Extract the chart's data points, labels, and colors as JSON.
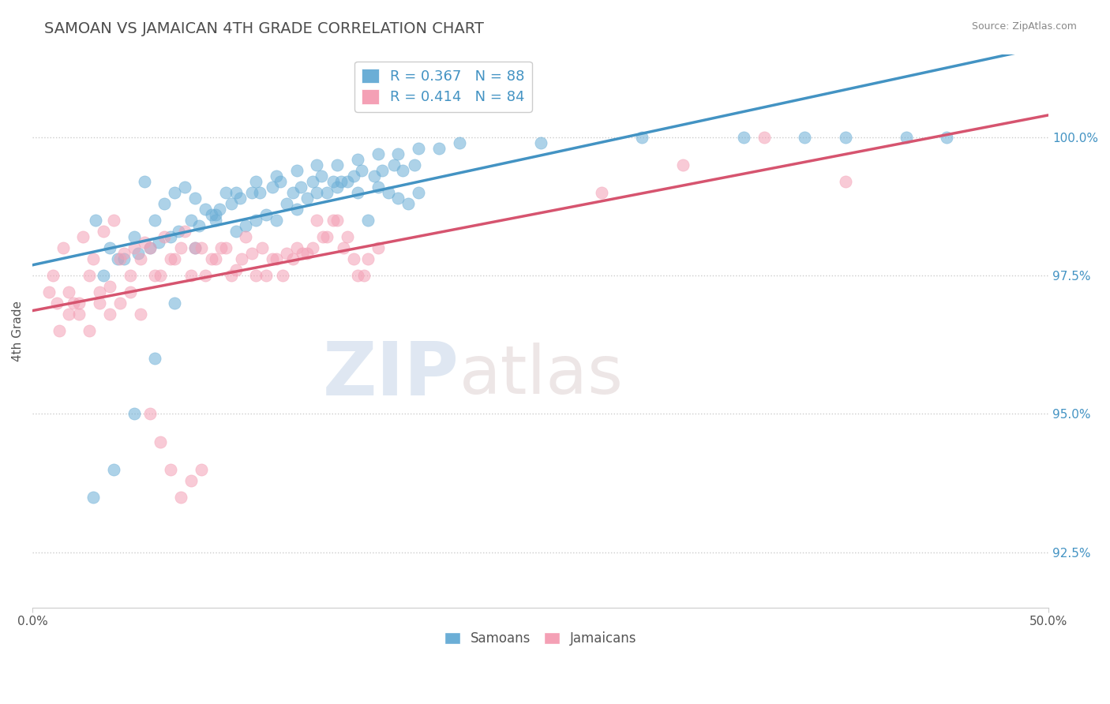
{
  "title": "SAMOAN VS JAMAICAN 4TH GRADE CORRELATION CHART",
  "source_text": "Source: ZipAtlas.com",
  "ylabel": "4th Grade",
  "xlim": [
    0.0,
    50.0
  ],
  "ylim": [
    91.5,
    101.5
  ],
  "ytick_labels": [
    "92.5%",
    "95.0%",
    "97.5%",
    "100.0%"
  ],
  "ytick_values": [
    92.5,
    95.0,
    97.5,
    100.0
  ],
  "legend_label_blue": "R = 0.367   N = 88",
  "legend_label_pink": "R = 0.414   N = 84",
  "watermark_zip": "ZIP",
  "watermark_atlas": "atlas",
  "blue_color": "#6baed6",
  "pink_color": "#f4a0b5",
  "blue_line_color": "#4393c3",
  "pink_line_color": "#d6546f",
  "background_color": "#ffffff",
  "title_color": "#4d4d4d",
  "grid_color": "#cccccc",
  "blue_scatter_x": [
    3.1,
    3.8,
    4.2,
    5.0,
    5.5,
    6.0,
    6.5,
    7.0,
    7.5,
    8.0,
    8.5,
    9.0,
    9.5,
    10.0,
    10.5,
    11.0,
    11.5,
    12.0,
    12.5,
    13.0,
    13.5,
    14.0,
    14.5,
    15.0,
    15.5,
    16.0,
    16.5,
    17.0,
    17.5,
    18.0,
    18.5,
    19.0,
    3.5,
    4.5,
    5.2,
    5.8,
    6.2,
    6.8,
    7.2,
    7.8,
    8.2,
    8.8,
    9.2,
    9.8,
    10.2,
    10.8,
    11.2,
    11.8,
    12.2,
    12.8,
    13.2,
    13.8,
    14.2,
    14.8,
    15.2,
    15.8,
    16.2,
    16.8,
    17.2,
    17.8,
    18.2,
    18.8,
    3.0,
    4.0,
    5.0,
    6.0,
    7.0,
    8.0,
    9.0,
    10.0,
    11.0,
    12.0,
    13.0,
    14.0,
    15.0,
    16.0,
    17.0,
    18.0,
    19.0,
    20.0,
    21.0,
    25.0,
    30.0,
    35.0,
    38.0,
    40.0,
    43.0,
    45.0
  ],
  "blue_scatter_y": [
    98.5,
    98.0,
    97.8,
    98.2,
    99.2,
    98.5,
    98.8,
    99.0,
    99.1,
    98.9,
    98.7,
    98.6,
    99.0,
    98.3,
    98.4,
    98.5,
    98.6,
    98.5,
    98.8,
    98.7,
    98.9,
    99.0,
    99.0,
    99.1,
    99.2,
    99.0,
    98.5,
    99.1,
    99.0,
    98.9,
    98.8,
    99.0,
    97.5,
    97.8,
    97.9,
    98.0,
    98.1,
    98.2,
    98.3,
    98.5,
    98.4,
    98.6,
    98.7,
    98.8,
    98.9,
    99.0,
    99.0,
    99.1,
    99.2,
    99.0,
    99.1,
    99.2,
    99.3,
    99.2,
    99.2,
    99.3,
    99.4,
    99.3,
    99.4,
    99.5,
    99.4,
    99.5,
    93.5,
    94.0,
    95.0,
    96.0,
    97.0,
    98.0,
    98.5,
    99.0,
    99.2,
    99.3,
    99.4,
    99.5,
    99.5,
    99.6,
    99.7,
    99.7,
    99.8,
    99.8,
    99.9,
    99.9,
    100.0,
    100.0,
    100.0,
    100.0,
    100.0,
    100.0
  ],
  "pink_scatter_x": [
    1.0,
    1.5,
    2.0,
    2.5,
    3.0,
    3.5,
    4.0,
    4.5,
    5.0,
    5.5,
    6.0,
    6.5,
    7.0,
    7.5,
    8.0,
    8.5,
    9.0,
    9.5,
    10.0,
    10.5,
    11.0,
    11.5,
    12.0,
    12.5,
    13.0,
    13.5,
    14.0,
    14.5,
    15.0,
    15.5,
    16.0,
    16.5,
    17.0,
    1.2,
    1.8,
    2.3,
    2.8,
    3.3,
    3.8,
    4.3,
    4.8,
    5.3,
    5.8,
    6.3,
    6.8,
    7.3,
    7.8,
    8.3,
    8.8,
    9.3,
    9.8,
    10.3,
    10.8,
    11.3,
    11.8,
    12.3,
    12.8,
    13.3,
    13.8,
    14.3,
    14.8,
    15.3,
    15.8,
    16.3,
    0.8,
    1.3,
    1.8,
    2.3,
    2.8,
    3.3,
    3.8,
    4.3,
    4.8,
    5.3,
    5.8,
    6.3,
    6.8,
    7.3,
    7.8,
    8.3,
    28.0,
    32.0,
    36.0,
    40.0
  ],
  "pink_scatter_y": [
    97.5,
    98.0,
    97.0,
    98.2,
    97.8,
    98.3,
    98.5,
    97.9,
    98.0,
    98.1,
    97.5,
    98.2,
    97.8,
    98.3,
    98.0,
    97.5,
    97.8,
    98.0,
    97.6,
    98.2,
    97.5,
    97.5,
    97.8,
    97.9,
    98.0,
    97.9,
    98.5,
    98.2,
    98.5,
    98.2,
    97.5,
    97.8,
    98.0,
    97.0,
    97.2,
    96.8,
    97.5,
    97.0,
    97.3,
    97.8,
    97.5,
    97.8,
    98.0,
    97.5,
    97.8,
    98.0,
    97.5,
    98.0,
    97.8,
    98.0,
    97.5,
    97.8,
    97.9,
    98.0,
    97.8,
    97.5,
    97.8,
    97.9,
    98.0,
    98.2,
    98.5,
    98.0,
    97.8,
    97.5,
    97.2,
    96.5,
    96.8,
    97.0,
    96.5,
    97.2,
    96.8,
    97.0,
    97.2,
    96.8,
    95.0,
    94.5,
    94.0,
    93.5,
    93.8,
    94.0,
    99.0,
    99.5,
    100.0,
    99.2
  ]
}
